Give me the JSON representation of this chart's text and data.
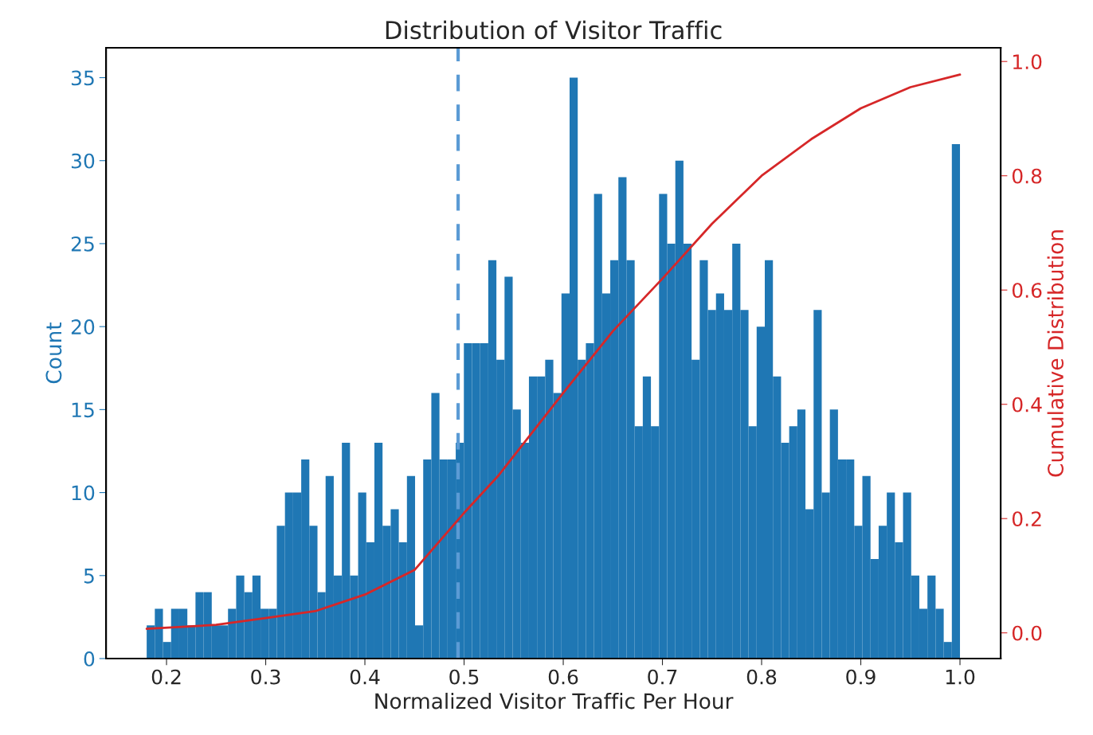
{
  "chart_data": {
    "type": "histogram",
    "title": "Distribution of Visitor Traffic",
    "xlabel": "Normalized Visitor Traffic Per Hour",
    "ylabel": "Count",
    "y2label": "Cumulative Distribution",
    "xlim": [
      0.139,
      1.041
    ],
    "xticks": [
      0.2,
      0.3,
      0.4,
      0.5,
      0.6,
      0.7,
      0.8,
      0.9,
      {
        "value": 1,
        "label": "1.0"
      }
    ],
    "ylim": [
      0,
      36.8
    ],
    "yticks": [
      0,
      5,
      10,
      15,
      20,
      25,
      30,
      35
    ],
    "y2lim": [
      -0.045,
      1.024
    ],
    "y2ticks": [
      {
        "value": 0,
        "label": "0.0"
      },
      0.2,
      0.4,
      0.6,
      0.8,
      {
        "value": 1,
        "label": "1.0"
      }
    ],
    "grid": false,
    "legend": false,
    "series": [
      {
        "color": "#1f77b4",
        "bins": [
          0.18,
          0.1882,
          0.1964,
          0.2046,
          0.2128,
          0.221,
          0.2292,
          0.2374,
          0.2456,
          0.2538,
          0.262,
          0.2702,
          0.2784,
          0.2866,
          0.2948,
          0.303,
          0.3112,
          0.3194,
          0.3276,
          0.3358,
          0.344,
          0.3522,
          0.3604,
          0.3686,
          0.3768,
          0.385,
          0.3932,
          0.4014,
          0.4096,
          0.4178,
          0.426,
          0.4342,
          0.4424,
          0.4506,
          0.4588,
          0.467,
          0.4752,
          0.4834,
          0.4916,
          0.4998,
          0.508,
          0.5162,
          0.5244,
          0.5326,
          0.5408,
          0.549,
          0.5572,
          0.5654,
          0.5736,
          0.5818,
          0.59,
          0.5982,
          0.6064,
          0.6146,
          0.6228,
          0.631,
          0.6392,
          0.6474,
          0.6556,
          0.6638,
          0.672,
          0.6802,
          0.6884,
          0.6966,
          0.7048,
          0.713,
          0.7212,
          0.7294,
          0.7376,
          0.7458,
          0.754,
          0.7622,
          0.7704,
          0.7786,
          0.7868,
          0.795,
          0.8032,
          0.8114,
          0.8196,
          0.8278,
          0.836,
          0.8442,
          0.8524,
          0.8606,
          0.8688,
          0.877,
          0.8852,
          0.8934,
          0.9016,
          0.9098,
          0.918,
          0.9262,
          0.9344,
          0.9426,
          0.9508,
          0.959,
          0.9672,
          0.9754,
          0.9836,
          0.9918,
          1.0
        ],
        "values": [
          2,
          3,
          1,
          3,
          3,
          2,
          4,
          4,
          2,
          2,
          3,
          5,
          4,
          5,
          3,
          3,
          8,
          10,
          10,
          12,
          8,
          4,
          11,
          5,
          13,
          5,
          10,
          7,
          13,
          8,
          9,
          7,
          11,
          2,
          12,
          16,
          12,
          12,
          13,
          19,
          19,
          19,
          24,
          18,
          23,
          15,
          13,
          17,
          17,
          18,
          16,
          22,
          35,
          18,
          19,
          28,
          22,
          24,
          29,
          24,
          14,
          17,
          14,
          28,
          25,
          30,
          25,
          18,
          24,
          21,
          22,
          21,
          25,
          21,
          14,
          20,
          24,
          17,
          13,
          14,
          15,
          9,
          21,
          10,
          15,
          12,
          12,
          8,
          11,
          6,
          8,
          10,
          7,
          10,
          5,
          3,
          5,
          3,
          1,
          31
        ]
      },
      {
        "type": "line",
        "axis": "y2",
        "color": "#d62728",
        "x": [
          0.18,
          0.25,
          0.3,
          0.35,
          0.4,
          0.45,
          0.5,
          0.535,
          0.6,
          0.65,
          0.7,
          0.75,
          0.8,
          0.85,
          0.9,
          0.95,
          1.0
        ],
        "values": [
          0.007,
          0.014,
          0.026,
          0.038,
          0.067,
          0.11,
          0.21,
          0.276,
          0.42,
          0.528,
          0.62,
          0.716,
          0.8,
          0.864,
          0.918,
          0.955,
          0.977
        ]
      }
    ],
    "ref_lines": [
      {
        "axis": "x",
        "value": 0.494,
        "color": "#5b9bd5",
        "line_style": "dashed"
      }
    ]
  }
}
